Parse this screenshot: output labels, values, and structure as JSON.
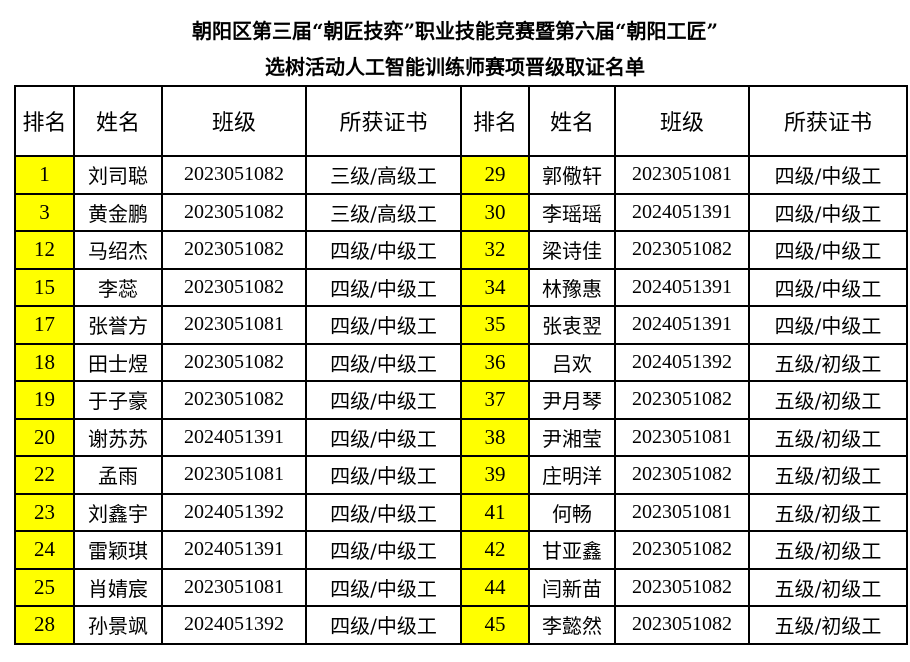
{
  "title": {
    "line1": "朝阳区第三届“朝匠技弈”职业技能竞赛暨第六届“朝阳工匠”",
    "line2": "选树活动人工智能训练师赛项晋级取证名单"
  },
  "headers": [
    "排名",
    "姓名",
    "班级",
    "所获证书",
    "排名",
    "姓名",
    "班级",
    "所获证书"
  ],
  "highlight_color": "#ffff00",
  "left": [
    {
      "rank": "1",
      "name": "刘司聪",
      "class": "2023051082",
      "cert": "三级/高级工"
    },
    {
      "rank": "3",
      "name": "黄金鹏",
      "class": "2023051082",
      "cert": "三级/高级工"
    },
    {
      "rank": "12",
      "name": "马绍杰",
      "class": "2023051082",
      "cert": "四级/中级工"
    },
    {
      "rank": "15",
      "name": "李蕊",
      "class": "2023051082",
      "cert": "四级/中级工"
    },
    {
      "rank": "17",
      "name": "张誉方",
      "class": "2023051081",
      "cert": "四级/中级工"
    },
    {
      "rank": "18",
      "name": "田士煜",
      "class": "2023051082",
      "cert": "四级/中级工"
    },
    {
      "rank": "19",
      "name": "于子豪",
      "class": "2023051082",
      "cert": "四级/中级工"
    },
    {
      "rank": "20",
      "name": "谢苏苏",
      "class": "2024051391",
      "cert": "四级/中级工"
    },
    {
      "rank": "22",
      "name": "孟雨",
      "class": "2023051081",
      "cert": "四级/中级工"
    },
    {
      "rank": "23",
      "name": "刘鑫宇",
      "class": "2024051392",
      "cert": "四级/中级工"
    },
    {
      "rank": "24",
      "name": "雷颖琪",
      "class": "2024051391",
      "cert": "四级/中级工"
    },
    {
      "rank": "25",
      "name": "肖婧宸",
      "class": "2023051081",
      "cert": "四级/中级工"
    },
    {
      "rank": "28",
      "name": "孙景飒",
      "class": "2024051392",
      "cert": "四级/中级工"
    }
  ],
  "right": [
    {
      "rank": "29",
      "name": "郭儆轩",
      "class": "2023051081",
      "cert": "四级/中级工"
    },
    {
      "rank": "30",
      "name": "李瑶瑶",
      "class": "2024051391",
      "cert": "四级/中级工"
    },
    {
      "rank": "32",
      "name": "梁诗佳",
      "class": "2023051082",
      "cert": "四级/中级工"
    },
    {
      "rank": "34",
      "name": "林豫惠",
      "class": "2024051391",
      "cert": "四级/中级工"
    },
    {
      "rank": "35",
      "name": "张衷翌",
      "class": "2024051391",
      "cert": "四级/中级工"
    },
    {
      "rank": "36",
      "name": "吕欢",
      "class": "2024051392",
      "cert": "五级/初级工"
    },
    {
      "rank": "37",
      "name": "尹月琴",
      "class": "2023051082",
      "cert": "五级/初级工"
    },
    {
      "rank": "38",
      "name": "尹湘莹",
      "class": "2023051081",
      "cert": "五级/初级工"
    },
    {
      "rank": "39",
      "name": "庄明洋",
      "class": "2023051082",
      "cert": "五级/初级工"
    },
    {
      "rank": "41",
      "name": "何畅",
      "class": "2023051081",
      "cert": "五级/初级工"
    },
    {
      "rank": "42",
      "name": "甘亚鑫",
      "class": "2023051082",
      "cert": "五级/初级工"
    },
    {
      "rank": "44",
      "name": "闫新苗",
      "class": "2023051082",
      "cert": "五级/初级工"
    },
    {
      "rank": "45",
      "name": "李懿然",
      "class": "2023051082",
      "cert": "五级/初级工"
    }
  ]
}
